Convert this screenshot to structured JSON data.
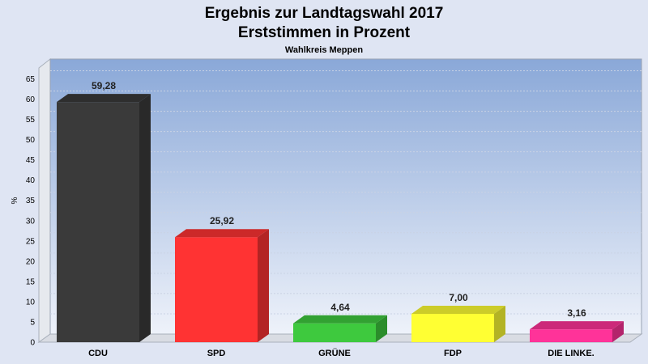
{
  "chart_data": {
    "type": "bar",
    "title": "Ergebnis zur Landtagswahl 2017",
    "subtitle": "Erststimmen in Prozent",
    "caption": "Wahlkreis Meppen",
    "ylabel": "%",
    "xlabel": "",
    "ylim": [
      0,
      65
    ],
    "yticks": [
      0,
      5,
      10,
      15,
      20,
      25,
      30,
      35,
      40,
      45,
      50,
      55,
      60,
      65
    ],
    "grid": true,
    "categories": [
      "CDU",
      "SPD",
      "GRÜNE",
      "FDP",
      "DIE LINKE."
    ],
    "values": [
      59.28,
      25.92,
      4.64,
      7.0,
      3.16
    ],
    "value_labels": [
      "59,28",
      "25,92",
      "4,64",
      "7,00",
      "3,16"
    ],
    "colors": [
      "#3a3a3a",
      "#ff3333",
      "#3ec93e",
      "#ffff33",
      "#ff3399"
    ]
  }
}
